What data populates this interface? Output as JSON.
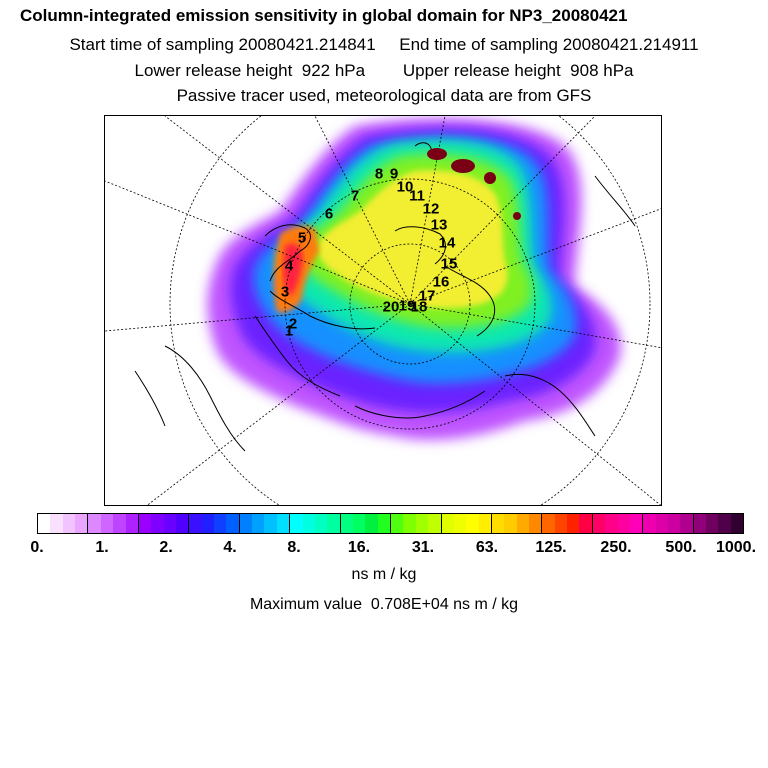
{
  "header": {
    "title": "Column-integrated emission sensitivity in global domain for NP3_20080421",
    "sampling": "Start time of sampling 20080421.214841     End time of sampling 20080421.214911",
    "release": "Lower release height  922 hPa        Upper release height  908 hPa",
    "tracer": "Passive tracer used, meteorological data are from GFS"
  },
  "map": {
    "track_points": [
      "1",
      "2",
      "3",
      "4",
      "5",
      "6",
      "7",
      "8",
      "9",
      "10",
      "11",
      "12",
      "13",
      "14",
      "15",
      "16",
      "17",
      "18",
      "19",
      "20"
    ]
  },
  "legend": {
    "tick_labels": [
      "0.",
      "1.",
      "2.",
      "4.",
      "8.",
      "16.",
      "31.",
      "63.",
      "125.",
      "250.",
      "500.",
      "1000."
    ],
    "units": "ns m / kg",
    "max_value": "Maximum value  0.708E+04 ns m / kg",
    "colors": [
      "#ffffff",
      "#f9e0ff",
      "#f2c4ff",
      "#eaa6ff",
      "#dd88ff",
      "#cf66ff",
      "#bf44ff",
      "#ad22ff",
      "#9a00ff",
      "#8000ff",
      "#6a00ff",
      "#5000ff",
      "#3a10ff",
      "#2020ff",
      "#1040ff",
      "#0060ff",
      "#0080ff",
      "#00a0ff",
      "#00c0ff",
      "#00dfff",
      "#00ffff",
      "#00ffe0",
      "#00ffc0",
      "#00ff9f",
      "#00ff80",
      "#00ff60",
      "#00f040",
      "#20ff20",
      "#50ff10",
      "#80ff00",
      "#a0ff00",
      "#c0ff00",
      "#e0ff00",
      "#f0ff00",
      "#ffff00",
      "#ffee00",
      "#ffdd00",
      "#ffcc00",
      "#ffaa00",
      "#ff8800",
      "#ff6600",
      "#ff4400",
      "#ff2200",
      "#ff0044",
      "#ff0066",
      "#ff0088",
      "#ff00a0",
      "#ff00b8",
      "#ee00b0",
      "#dd00a8",
      "#cc00a0",
      "#b00090",
      "#900078",
      "#700060",
      "#500048",
      "#300030"
    ]
  }
}
